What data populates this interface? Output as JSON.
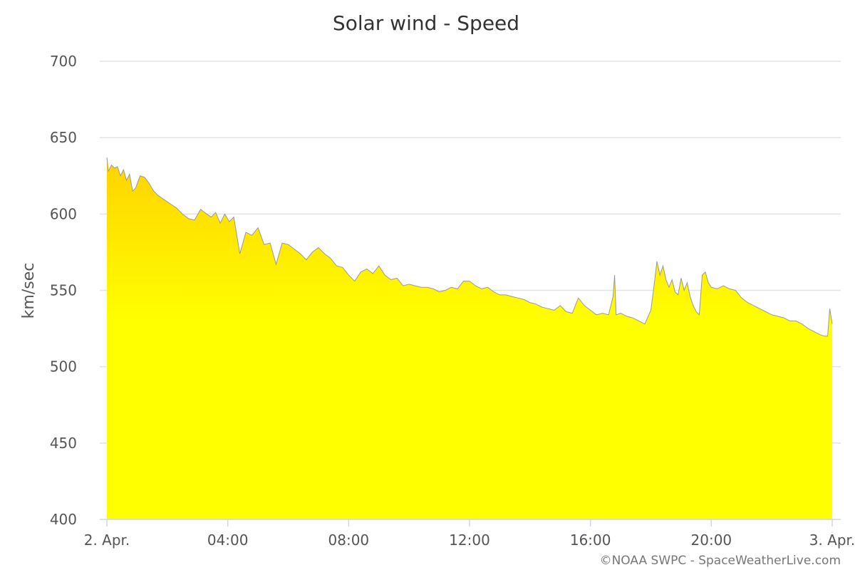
{
  "chart_data": {
    "type": "area",
    "title": "Solar wind - Speed",
    "ylabel": "km/sec",
    "xlabel": "",
    "ylim": [
      400,
      700
    ],
    "yticks": [
      "400",
      "450",
      "500",
      "550",
      "600",
      "650",
      "700"
    ],
    "xlim": [
      0,
      24
    ],
    "xticks": [
      {
        "x": 0,
        "label": "2. Apr."
      },
      {
        "x": 4,
        "label": "04:00"
      },
      {
        "x": 8,
        "label": "08:00"
      },
      {
        "x": 12,
        "label": "12:00"
      },
      {
        "x": 16,
        "label": "16:00"
      },
      {
        "x": 20,
        "label": "20:00"
      },
      {
        "x": 24,
        "label": "3. Apr."
      }
    ],
    "grid": true,
    "legend": "none",
    "credit": "©NOAA SWPC - SpaceWeatherLive.com",
    "colors": {
      "fill_top": "#ffd200",
      "fill_bottom": "#ffff00",
      "line": "#999999"
    },
    "series": [
      {
        "x": [
          0.0,
          0.05,
          0.15,
          0.25,
          0.35,
          0.45,
          0.55,
          0.65,
          0.75,
          0.85,
          0.95,
          1.1,
          1.25,
          1.4,
          1.55,
          1.7,
          1.85,
          2.0,
          2.15,
          2.3,
          2.5,
          2.7,
          2.9,
          3.1,
          3.3,
          3.45,
          3.6,
          3.75,
          3.9,
          4.05,
          4.2,
          4.4,
          4.6,
          4.8,
          5.0,
          5.2,
          5.4,
          5.6,
          5.8,
          6.0,
          6.2,
          6.4,
          6.6,
          6.8,
          7.0,
          7.2,
          7.4,
          7.6,
          7.8,
          8.0,
          8.2,
          8.4,
          8.6,
          8.8,
          9.0,
          9.2,
          9.4,
          9.6,
          9.8,
          10.0,
          10.2,
          10.4,
          10.6,
          10.8,
          11.0,
          11.2,
          11.4,
          11.6,
          11.8,
          12.0,
          12.2,
          12.4,
          12.6,
          12.8,
          13.0,
          13.2,
          13.4,
          13.6,
          13.8,
          14.0,
          14.2,
          14.4,
          14.6,
          14.8,
          15.0,
          15.2,
          15.4,
          15.6,
          15.8,
          16.0,
          16.2,
          16.4,
          16.6,
          16.75,
          16.8,
          16.85,
          17.0,
          17.2,
          17.4,
          17.6,
          17.8,
          18.0,
          18.1,
          18.2,
          18.3,
          18.4,
          18.5,
          18.6,
          18.7,
          18.8,
          18.9,
          19.0,
          19.1,
          19.2,
          19.3,
          19.4,
          19.5,
          19.6,
          19.7,
          19.8,
          19.9,
          20.0,
          20.2,
          20.4,
          20.6,
          20.8,
          21.0,
          21.2,
          21.4,
          21.6,
          21.8,
          22.0,
          22.2,
          22.4,
          22.6,
          22.8,
          23.0,
          23.2,
          23.4,
          23.6,
          23.75,
          23.85,
          23.92,
          24.0
        ],
        "values": [
          637,
          628,
          632,
          630,
          631,
          625,
          629,
          622,
          626,
          615,
          617,
          625,
          624,
          620,
          615,
          612,
          610,
          608,
          606,
          604,
          600,
          597,
          596,
          603,
          600,
          598,
          601,
          594,
          600,
          595,
          598,
          574,
          588,
          586,
          591,
          580,
          581,
          567,
          581,
          580,
          577,
          574,
          570,
          575,
          578,
          574,
          571,
          566,
          565,
          560,
          556,
          562,
          564,
          561,
          566,
          560,
          557,
          558,
          553,
          554,
          553,
          552,
          552,
          551,
          549,
          550,
          552,
          551,
          556,
          556,
          553,
          551,
          552,
          549,
          547,
          547,
          546,
          545,
          544,
          542,
          541,
          539,
          538,
          537,
          540,
          536,
          535,
          545,
          540,
          537,
          534,
          535,
          534,
          546,
          560,
          534,
          535,
          533,
          532,
          530,
          528,
          537,
          552,
          569,
          560,
          566,
          557,
          552,
          557,
          549,
          547,
          558,
          550,
          555,
          546,
          540,
          536,
          534,
          560,
          562,
          555,
          552,
          551,
          553,
          551,
          550,
          545,
          542,
          540,
          538,
          536,
          534,
          533,
          532,
          530,
          530,
          528,
          525,
          523,
          521,
          520,
          520,
          538,
          528
        ]
      }
    ]
  }
}
